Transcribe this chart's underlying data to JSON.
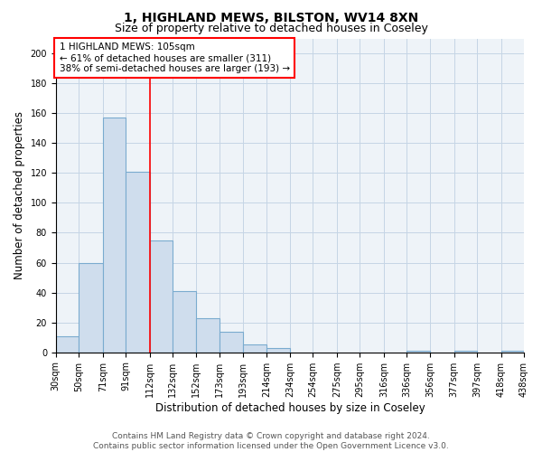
{
  "title1": "1, HIGHLAND MEWS, BILSTON, WV14 8XN",
  "title2": "Size of property relative to detached houses in Coseley",
  "xlabel": "Distribution of detached houses by size in Coseley",
  "ylabel": "Number of detached properties",
  "bar_lefts": [
    30,
    50,
    71,
    91,
    112,
    132,
    152,
    173,
    193,
    214,
    234,
    254,
    275,
    295,
    316,
    336,
    356,
    377,
    397,
    418
  ],
  "bar_rights": [
    50,
    71,
    91,
    112,
    132,
    152,
    173,
    193,
    214,
    234,
    254,
    275,
    295,
    316,
    336,
    356,
    377,
    397,
    418,
    438
  ],
  "bar_values": [
    11,
    60,
    157,
    121,
    75,
    41,
    23,
    14,
    5,
    3,
    0,
    0,
    0,
    0,
    0,
    1,
    0,
    1,
    0,
    1
  ],
  "tick_positions": [
    30,
    50,
    71,
    91,
    112,
    132,
    152,
    173,
    193,
    214,
    234,
    254,
    275,
    295,
    316,
    336,
    356,
    377,
    397,
    418,
    438
  ],
  "tick_labels": [
    "30sqm",
    "50sqm",
    "71sqm",
    "91sqm",
    "112sqm",
    "132sqm",
    "152sqm",
    "173sqm",
    "193sqm",
    "214sqm",
    "234sqm",
    "254sqm",
    "275sqm",
    "295sqm",
    "316sqm",
    "336sqm",
    "356sqm",
    "377sqm",
    "397sqm",
    "418sqm",
    "438sqm"
  ],
  "bar_color": "#cfdded",
  "bar_edge_color": "#7aabcf",
  "red_line_x": 112,
  "annotation_lines": [
    "1 HIGHLAND MEWS: 105sqm",
    "← 61% of detached houses are smaller (311)",
    "38% of semi-detached houses are larger (193) →"
  ],
  "ylim": [
    0,
    210
  ],
  "yticks": [
    0,
    20,
    40,
    60,
    80,
    100,
    120,
    140,
    160,
    180,
    200
  ],
  "grid_color": "#c5d5e5",
  "background_color": "#eef3f8",
  "footer": "Contains HM Land Registry data © Crown copyright and database right 2024.\nContains public sector information licensed under the Open Government Licence v3.0.",
  "title1_fontsize": 10,
  "title2_fontsize": 9,
  "xlabel_fontsize": 8.5,
  "ylabel_fontsize": 8.5,
  "tick_fontsize": 7,
  "annotation_fontsize": 7.5,
  "footer_fontsize": 6.5
}
